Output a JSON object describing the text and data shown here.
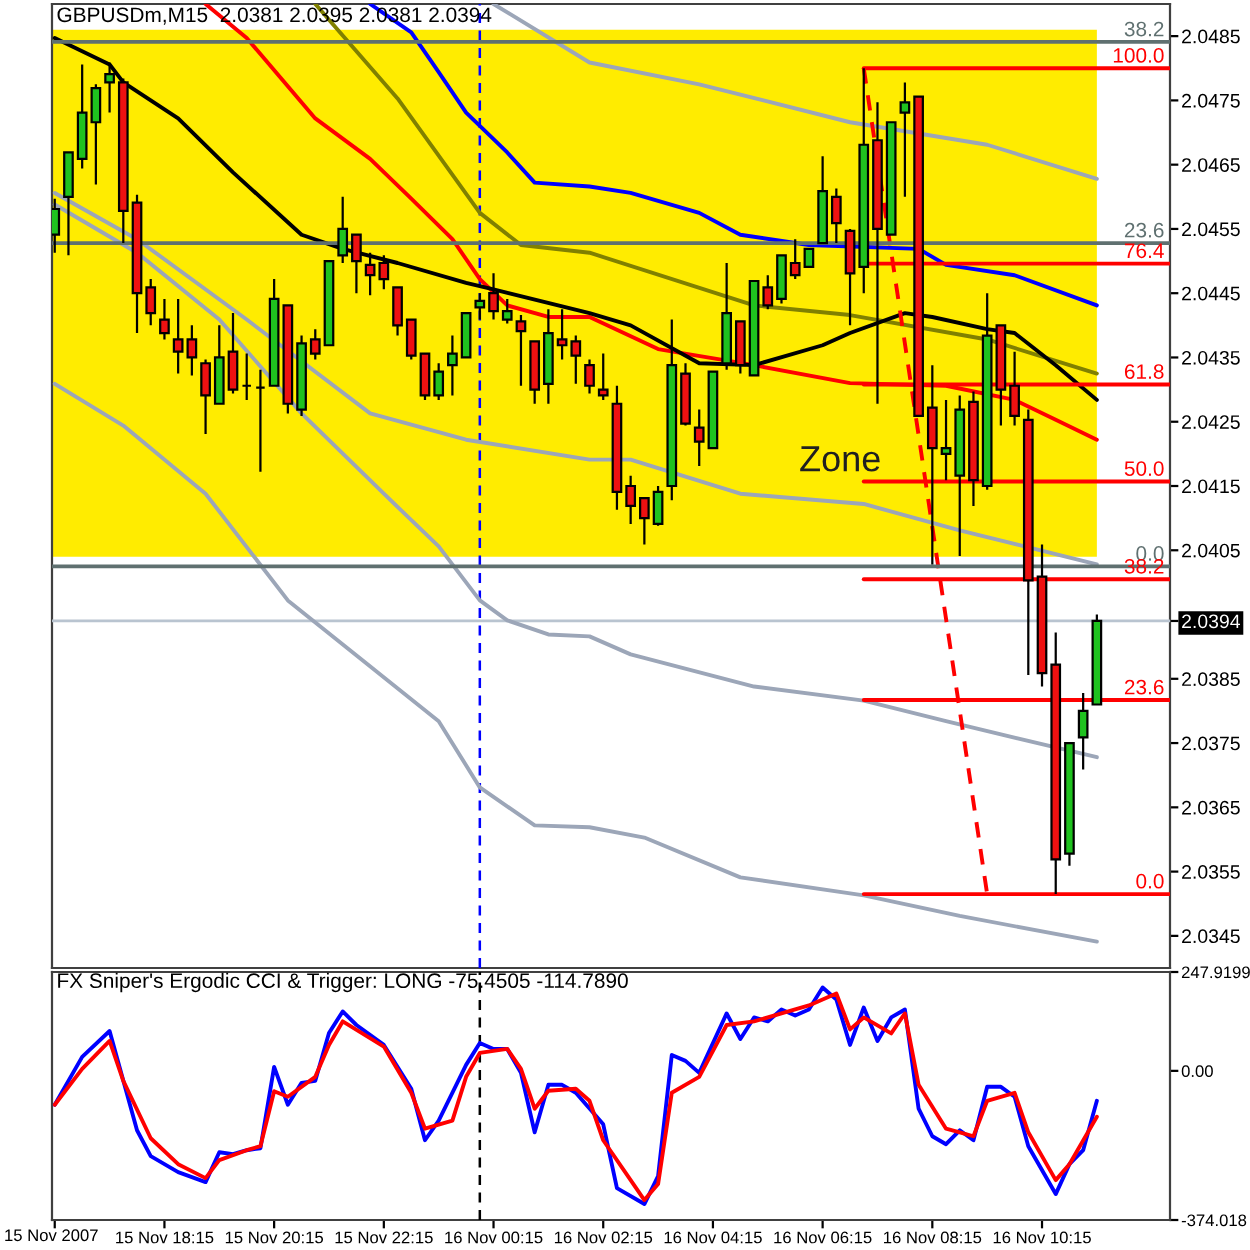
{
  "chart_data": [
    {
      "type": "candlestick",
      "title": "GBPUSDm,M15  2.0381 2.0395 2.0381 2.0394",
      "x": [
        "2007-11-15T16:15",
        "2007-11-15T16:30",
        "2007-11-15T16:45",
        "2007-11-15T17:00",
        "2007-11-15T17:15",
        "2007-11-15T17:30",
        "2007-11-15T17:45",
        "2007-11-15T18:00",
        "2007-11-15T18:15",
        "2007-11-15T18:30",
        "2007-11-15T18:45",
        "2007-11-15T19:00",
        "2007-11-15T19:15",
        "2007-11-15T19:30",
        "2007-11-15T19:45",
        "2007-11-15T20:00",
        "2007-11-15T20:15",
        "2007-11-15T20:30",
        "2007-11-15T20:45",
        "2007-11-15T21:00",
        "2007-11-15T21:15",
        "2007-11-15T21:30",
        "2007-11-15T21:45",
        "2007-11-15T22:00",
        "2007-11-15T22:15",
        "2007-11-15T22:30",
        "2007-11-15T22:45",
        "2007-11-15T23:00",
        "2007-11-15T23:15",
        "2007-11-15T23:30",
        "2007-11-15T23:45",
        "2007-11-16T00:00",
        "2007-11-16T00:15",
        "2007-11-16T00:30",
        "2007-11-16T00:45",
        "2007-11-16T01:00",
        "2007-11-16T01:15",
        "2007-11-16T01:30",
        "2007-11-16T01:45",
        "2007-11-16T02:00",
        "2007-11-16T02:15",
        "2007-11-16T02:30",
        "2007-11-16T02:45",
        "2007-11-16T03:00",
        "2007-11-16T03:15",
        "2007-11-16T03:30",
        "2007-11-16T03:45",
        "2007-11-16T04:00",
        "2007-11-16T04:15",
        "2007-11-16T04:30",
        "2007-11-16T04:45",
        "2007-11-16T05:00",
        "2007-11-16T05:15",
        "2007-11-16T05:30",
        "2007-11-16T05:45",
        "2007-11-16T06:00",
        "2007-11-16T06:15",
        "2007-11-16T06:30",
        "2007-11-16T06:45",
        "2007-11-16T07:00",
        "2007-11-16T07:15",
        "2007-11-16T07:30",
        "2007-11-16T07:45",
        "2007-11-16T08:00",
        "2007-11-16T08:15",
        "2007-11-16T08:30",
        "2007-11-16T08:45",
        "2007-11-16T09:00",
        "2007-11-16T09:15",
        "2007-11-16T09:30",
        "2007-11-16T09:45",
        "2007-11-16T10:00",
        "2007-11-16T10:15",
        "2007-11-16T10:30",
        "2007-11-16T10:45",
        "2007-11-16T11:00",
        "2007-11-16T11:15"
      ],
      "ohlc": [
        [
          2.04541,
          2.04597,
          2.04513,
          2.04581
        ],
        [
          2.046,
          2.04669,
          2.04509,
          2.04669
        ],
        [
          2.04659,
          2.04806,
          2.04644,
          2.04731
        ],
        [
          2.04716,
          2.04775,
          2.04619,
          2.04769
        ],
        [
          2.04778,
          2.04809,
          2.04731,
          2.04791
        ],
        [
          2.04778,
          2.04784,
          2.04528,
          2.04578
        ],
        [
          2.04591,
          2.04603,
          2.04388,
          2.0445
        ],
        [
          2.04459,
          2.04472,
          2.044,
          2.04419
        ],
        [
          2.04409,
          2.04441,
          2.04378,
          2.04388
        ],
        [
          2.04378,
          2.04441,
          2.04325,
          2.04359
        ],
        [
          2.04378,
          2.044,
          2.04322,
          2.0435
        ],
        [
          2.04341,
          2.04347,
          2.04231,
          2.04291
        ],
        [
          2.04278,
          2.044,
          2.04278,
          2.0435
        ],
        [
          2.04359,
          2.04419,
          2.04294,
          2.043
        ],
        [
          2.04306,
          2.04356,
          2.04284,
          2.04306
        ],
        [
          2.04303,
          2.04331,
          2.04172,
          2.04303
        ],
        [
          2.04306,
          2.04472,
          2.04306,
          2.04441
        ],
        [
          2.04431,
          2.04431,
          2.04263,
          2.04278
        ],
        [
          2.04269,
          2.04384,
          2.04259,
          2.04372
        ],
        [
          2.04378,
          2.04394,
          2.04347,
          2.04356
        ],
        [
          2.04369,
          2.045,
          2.04369,
          2.045
        ],
        [
          2.04509,
          2.046,
          2.04497,
          2.0455
        ],
        [
          2.04541,
          2.04541,
          2.0445,
          2.045
        ],
        [
          2.04494,
          2.04513,
          2.04447,
          2.04478
        ],
        [
          2.04497,
          2.04509,
          2.04456,
          2.04472
        ],
        [
          2.04459,
          2.04459,
          2.04384,
          2.044
        ],
        [
          2.04409,
          2.04409,
          2.04347,
          2.04353
        ],
        [
          2.04356,
          2.04356,
          2.04284,
          2.04291
        ],
        [
          2.04291,
          2.04341,
          2.04284,
          2.04328
        ],
        [
          2.04338,
          2.04384,
          2.04291,
          2.04356
        ],
        [
          2.0435,
          2.04419,
          2.0435,
          2.04419
        ],
        [
          2.04428,
          2.0445,
          2.04409,
          2.04438
        ],
        [
          2.0445,
          2.04481,
          2.04409,
          2.04422
        ],
        [
          2.04409,
          2.04441,
          2.04403,
          2.04422
        ],
        [
          2.04406,
          2.04416,
          2.04306,
          2.04391
        ],
        [
          2.04375,
          2.04375,
          2.04278,
          2.043
        ],
        [
          2.04309,
          2.04425,
          2.04278,
          2.04388
        ],
        [
          2.04378,
          2.04425,
          2.04347,
          2.04369
        ],
        [
          2.04375,
          2.04384,
          2.04309,
          2.04353
        ],
        [
          2.04338,
          2.04347,
          2.04294,
          2.04306
        ],
        [
          2.043,
          2.04356,
          2.04284,
          2.04291
        ],
        [
          2.04278,
          2.04306,
          2.04113,
          2.04141
        ],
        [
          2.0415,
          2.04166,
          2.04091,
          2.04119
        ],
        [
          2.04131,
          2.04131,
          2.04059,
          2.041
        ],
        [
          2.04091,
          2.0415,
          2.04088,
          2.04141
        ],
        [
          2.0415,
          2.04409,
          2.04128,
          2.04338
        ],
        [
          2.04325,
          2.04341,
          2.04244,
          2.04247
        ],
        [
          2.04241,
          2.04269,
          2.04181,
          2.04219
        ],
        [
          2.04209,
          2.04328,
          2.04209,
          2.04328
        ],
        [
          2.04341,
          2.04497,
          2.04331,
          2.04419
        ],
        [
          2.04406,
          2.04406,
          2.04325,
          2.04338
        ],
        [
          2.04322,
          2.04469,
          2.04322,
          2.04469
        ],
        [
          2.04459,
          2.04478,
          2.04425,
          2.04431
        ],
        [
          2.04441,
          2.04509,
          2.04434,
          2.04509
        ],
        [
          2.04497,
          2.04534,
          2.04472,
          2.04478
        ],
        [
          2.04491,
          2.04519,
          2.04491,
          2.04519
        ],
        [
          2.04528,
          2.04663,
          2.04528,
          2.04609
        ],
        [
          2.046,
          2.04613,
          2.04528,
          2.04559
        ],
        [
          2.04547,
          2.0455,
          2.044,
          2.04481
        ],
        [
          2.04491,
          2.048,
          2.0445,
          2.04681
        ],
        [
          2.04688,
          2.04747,
          2.04278,
          2.0455
        ],
        [
          2.04541,
          2.04716,
          2.04541,
          2.04716
        ],
        [
          2.04731,
          2.04778,
          2.046,
          2.04747
        ],
        [
          2.04756,
          2.04756,
          2.04259,
          2.04259
        ],
        [
          2.04272,
          2.04338,
          2.04028,
          2.04209
        ],
        [
          2.042,
          2.04284,
          2.04159,
          2.04209
        ],
        [
          2.04166,
          2.04291,
          2.04041,
          2.04269
        ],
        [
          2.04281,
          2.04297,
          2.04119,
          2.04159
        ],
        [
          2.0415,
          2.0445,
          2.04144,
          2.04384
        ],
        [
          2.044,
          2.044,
          2.04244,
          2.043
        ],
        [
          2.04306,
          2.04359,
          2.04244,
          2.04259
        ],
        [
          2.04253,
          2.04269,
          2.03856,
          2.04003
        ],
        [
          2.04009,
          2.04059,
          2.03838,
          2.03859
        ],
        [
          2.03872,
          2.03922,
          2.03515,
          2.03569
        ],
        [
          2.03578,
          2.0375,
          2.03559,
          2.0375
        ],
        [
          2.03759,
          2.03828,
          2.03709,
          2.038
        ],
        [
          2.0381,
          2.0395,
          2.0381,
          2.0394
        ]
      ],
      "colors": [
        "#1fc21f",
        "#1fc21f",
        "#1fc21f",
        "#1fc21f",
        "#1fc21f",
        "#ee1111",
        "#ee1111",
        "#ee1111",
        "#ee1111",
        "#ee1111",
        "#ee1111",
        "#ee1111",
        "#1fc21f",
        "#ee1111",
        "#000000",
        "#000000",
        "#1fc21f",
        "#ee1111",
        "#1fc21f",
        "#ee1111",
        "#1fc21f",
        "#1fc21f",
        "#ee1111",
        "#ee1111",
        "#ee1111",
        "#ee1111",
        "#ee1111",
        "#ee1111",
        "#1fc21f",
        "#1fc21f",
        "#1fc21f",
        "#1fc21f",
        "#ee1111",
        "#1fc21f",
        "#ee1111",
        "#ee1111",
        "#1fc21f",
        "#ee1111",
        "#ee1111",
        "#ee1111",
        "#ee1111",
        "#ee1111",
        "#ee1111",
        "#ee1111",
        "#1fc21f",
        "#1fc21f",
        "#ee1111",
        "#ee1111",
        "#1fc21f",
        "#1fc21f",
        "#ee1111",
        "#1fc21f",
        "#ee1111",
        "#1fc21f",
        "#ee1111",
        "#1fc21f",
        "#1fc21f",
        "#ee1111",
        "#ee1111",
        "#1fc21f",
        "#ee1111",
        "#1fc21f",
        "#1fc21f",
        "#ee1111",
        "#ee1111",
        "#1fc21f",
        "#1fc21f",
        "#ee1111",
        "#1fc21f",
        "#ee1111",
        "#ee1111",
        "#ee1111",
        "#ee1111",
        "#ee1111",
        "#1fc21f",
        "#1fc21f",
        "#1fc21f"
      ],
      "series": [
        {
          "type": "line",
          "color": "#9ca6b8",
          "x": [
            "2007-11-16T00:15",
            "2007-11-16T02:00",
            "2007-11-16T04:00",
            "2007-11-16T06:45",
            "2007-11-16T09:15",
            "2007-11-16T11:15"
          ],
          "values": [
            2.049,
            2.04809,
            2.04775,
            2.04716,
            2.04681,
            2.04628
          ]
        },
        {
          "type": "line",
          "color": "#9ca6b8",
          "x": [
            "2007-11-15T16:15",
            "2007-11-15T17:45",
            "2007-11-15T19:45",
            "2007-11-15T22:00",
            "2007-11-15T23:45",
            "2007-11-16T02:00",
            "2007-11-16T02:45",
            "2007-11-16T04:45",
            "2007-11-16T07:00",
            "2007-11-16T08:45",
            "2007-11-16T11:15"
          ],
          "values": [
            2.04606,
            2.04534,
            2.04409,
            2.04263,
            2.04222,
            2.04191,
            2.04191,
            2.04138,
            2.04122,
            2.04081,
            2.04028
          ]
        },
        {
          "type": "line",
          "color": "#9ca6b8",
          "x": [
            "2007-11-15T16:15",
            "2007-11-15T17:45",
            "2007-11-15T19:15",
            "2007-11-15T20:45",
            "2007-11-15T22:15",
            "2007-11-15T23:15",
            "2007-11-16T00:00",
            "2007-11-16T00:30",
            "2007-11-16T01:15",
            "2007-11-16T02:00",
            "2007-11-16T02:45",
            "2007-11-16T05:00",
            "2007-11-16T07:00",
            "2007-11-16T08:30",
            "2007-11-16T11:15"
          ],
          "values": [
            2.04588,
            2.04513,
            2.04409,
            2.04263,
            2.04138,
            2.04056,
            2.03972,
            2.03941,
            2.03919,
            2.03916,
            2.03888,
            2.03838,
            2.03816,
            2.03784,
            2.03728
          ]
        },
        {
          "type": "line",
          "color": "#9ca6b8",
          "x": [
            "2007-11-15T16:15",
            "2007-11-15T17:30",
            "2007-11-15T19:00",
            "2007-11-15T20:30",
            "2007-11-15T23:15",
            "2007-11-16T00:00",
            "2007-11-16T01:00",
            "2007-11-16T02:00",
            "2007-11-16T03:00",
            "2007-11-16T04:45",
            "2007-11-16T07:00",
            "2007-11-16T08:45",
            "2007-11-16T11:15"
          ],
          "values": [
            2.04309,
            2.04244,
            2.04138,
            2.03972,
            2.03784,
            2.03681,
            2.03622,
            2.03619,
            2.03603,
            2.03541,
            2.03513,
            2.03481,
            2.03441
          ]
        },
        {
          "type": "line",
          "color": "#808000",
          "x": [
            "2007-11-15T21:00",
            "2007-11-15T22:30",
            "2007-11-16T00:00",
            "2007-11-16T00:45",
            "2007-11-16T02:00",
            "2007-11-16T05:00",
            "2007-11-16T06:45",
            "2007-11-16T09:15",
            "2007-11-16T11:15"
          ],
          "values": [
            2.049,
            2.04753,
            2.04575,
            2.04525,
            2.04513,
            2.04431,
            2.04416,
            2.04378,
            2.04325
          ]
        },
        {
          "type": "line",
          "color": "#0000ff",
          "x": [
            "2007-11-15T22:00",
            "2007-11-15T22:45",
            "2007-11-15T23:15",
            "2007-11-15T23:45",
            "2007-11-16T00:30",
            "2007-11-16T01:00",
            "2007-11-16T02:00",
            "2007-11-16T02:45",
            "2007-11-16T04:00",
            "2007-11-16T04:45",
            "2007-11-16T06:00",
            "2007-11-16T08:00",
            "2007-11-16T08:30",
            "2007-11-16T09:45",
            "2007-11-16T11:15"
          ],
          "values": [
            2.049,
            2.04856,
            2.04794,
            2.04731,
            2.04669,
            2.04622,
            2.04616,
            2.04606,
            2.04575,
            2.04541,
            2.04525,
            2.04519,
            2.04494,
            2.04478,
            2.04431
          ]
        },
        {
          "type": "line",
          "color": "#ff0000",
          "x": [
            "2007-11-15T19:00",
            "2007-11-15T19:45",
            "2007-11-15T21:00",
            "2007-11-15T22:00",
            "2007-11-15T22:45",
            "2007-11-15T23:30",
            "2007-11-16T00:00",
            "2007-11-16T00:30",
            "2007-11-16T01:15",
            "2007-11-16T02:00",
            "2007-11-16T03:15",
            "2007-11-16T05:00",
            "2007-11-16T06:45",
            "2007-11-16T08:30",
            "2007-11-16T09:45",
            "2007-11-16T10:30",
            "2007-11-16T11:15"
          ],
          "values": [
            2.049,
            2.04847,
            2.04722,
            2.04659,
            2.04597,
            2.04534,
            2.04472,
            2.04431,
            2.04413,
            2.04413,
            2.04363,
            2.04338,
            2.0431,
            2.04306,
            2.04284,
            2.04253,
            2.04222
          ]
        },
        {
          "type": "line",
          "color": "#000000",
          "x": [
            "2007-11-15T16:15",
            "2007-11-15T17:15",
            "2007-11-15T17:30",
            "2007-11-15T18:30",
            "2007-11-15T19:30",
            "2007-11-15T20:45",
            "2007-11-15T21:30",
            "2007-11-15T22:30",
            "2007-11-15T23:45",
            "2007-11-16T00:15",
            "2007-11-16T02:00",
            "2007-11-16T02:45",
            "2007-11-16T04:00",
            "2007-11-16T05:00",
            "2007-11-16T06:15",
            "2007-11-16T06:45",
            "2007-11-16T07:45",
            "2007-11-16T08:15",
            "2007-11-16T09:15",
            "2007-11-16T09:45",
            "2007-11-16T10:30",
            "2007-11-16T11:15"
          ],
          "values": [
            2.04847,
            2.04806,
            2.04778,
            2.04722,
            2.04638,
            2.04541,
            2.04519,
            2.04497,
            2.04466,
            2.04456,
            2.04419,
            2.044,
            2.04341,
            2.04338,
            2.04369,
            2.04388,
            2.04419,
            2.04413,
            2.04394,
            2.04388,
            2.04338,
            2.04284
          ]
        },
        {
          "type": "line",
          "color": "#ff0000",
          "line_style": "dashed",
          "x": [
            "2007-11-16T07:00",
            "2007-11-16T09:15"
          ],
          "values": [
            2.048,
            2.03515
          ]
        },
        {
          "type": "line",
          "color": "#5f7070",
          "name": "38.2",
          "x": [
            "2007-11-15T16:12",
            "2007-11-16T12:35"
          ],
          "values": [
            2.04841,
            2.04841
          ]
        },
        {
          "type": "line",
          "color": "#5f7070",
          "name": "23.6",
          "x": [
            "2007-11-15T16:12",
            "2007-11-16T12:35"
          ],
          "values": [
            2.04528,
            2.04528
          ]
        },
        {
          "type": "line",
          "color": "#5f7070",
          "name": "0.0",
          "x": [
            "2007-11-15T16:12",
            "2007-11-16T12:35"
          ],
          "values": [
            2.04025,
            2.04025
          ]
        },
        {
          "type": "line",
          "color": "#ff0000",
          "name": "100.0",
          "x": [
            "2007-11-16T07:00",
            "2007-11-16T12:35"
          ],
          "values": [
            2.048,
            2.048
          ]
        },
        {
          "type": "line",
          "color": "#ff0000",
          "name": "76.4",
          "x": [
            "2007-11-16T07:00",
            "2007-11-16T12:35"
          ],
          "values": [
            2.04496,
            2.04496
          ]
        },
        {
          "type": "line",
          "color": "#ff0000",
          "name": "61.8",
          "x": [
            "2007-11-16T07:00",
            "2007-11-16T12:35"
          ],
          "values": [
            2.04308,
            2.04308
          ]
        },
        {
          "type": "line",
          "color": "#ff0000",
          "name": "50.0",
          "x": [
            "2007-11-16T07:00",
            "2007-11-16T12:35"
          ],
          "values": [
            2.04157,
            2.04157
          ]
        },
        {
          "type": "line",
          "color": "#ff0000",
          "name": "38.2",
          "x": [
            "2007-11-16T07:00",
            "2007-11-16T12:35"
          ],
          "values": [
            2.04005,
            2.04005
          ]
        },
        {
          "type": "line",
          "color": "#ff0000",
          "name": "23.6",
          "x": [
            "2007-11-16T07:00",
            "2007-11-16T12:35"
          ],
          "values": [
            2.03817,
            2.03817
          ]
        },
        {
          "type": "line",
          "color": "#ff0000",
          "name": "0.0",
          "x": [
            "2007-11-16T07:00",
            "2007-11-16T12:35"
          ],
          "values": [
            2.03515,
            2.03515
          ]
        }
      ],
      "xlim": [
        "2007-11-15T16:12",
        "2007-11-16T12:35"
      ],
      "ylim": [
        2.034,
        2.049
      ],
      "yticks": [
        2.0485,
        2.0475,
        2.0465,
        2.0455,
        2.0445,
        2.0435,
        2.0425,
        2.0415,
        2.0405,
        2.0394,
        2.0385,
        2.0375,
        2.0365,
        2.0355,
        2.0345
      ],
      "tick_labels": "y",
      "bands": [
        {
          "axis": "y",
          "from": 2.0404,
          "to": 2.0486,
          "label": "Zone",
          "color": "#ffec00"
        }
      ],
      "ref_lines": [
        {
          "axis": "y",
          "value": 2.0394,
          "color": "#b9c4d0"
        },
        {
          "axis": "x",
          "value": "2007-11-16T00:00",
          "color": "#0000ff",
          "line_style": "dashed"
        }
      ]
    },
    {
      "type": "line",
      "title": "FX Sniper's Ergodic CCI & Trigger: LONG -75.4505 -114.7890",
      "series": [
        {
          "color": "#0000ff",
          "x": [
            "2007-11-15T16:15",
            "2007-11-15T16:45",
            "2007-11-15T17:15",
            "2007-11-15T17:45",
            "2007-11-15T18:00",
            "2007-11-15T18:30",
            "2007-11-15T19:00",
            "2007-11-15T19:15",
            "2007-11-15T19:30",
            "2007-11-15T19:45",
            "2007-11-15T20:00",
            "2007-11-15T20:15",
            "2007-11-15T20:30",
            "2007-11-15T20:45",
            "2007-11-15T21:00",
            "2007-11-15T21:15",
            "2007-11-15T21:30",
            "2007-11-15T21:45",
            "2007-11-15T22:15",
            "2007-11-15T22:45",
            "2007-11-15T23:00",
            "2007-11-15T23:15",
            "2007-11-15T23:45",
            "2007-11-16T00:00",
            "2007-11-16T00:15",
            "2007-11-16T00:30",
            "2007-11-16T00:45",
            "2007-11-16T01:00",
            "2007-11-16T01:15",
            "2007-11-16T01:30",
            "2007-11-16T01:45",
            "2007-11-16T02:15",
            "2007-11-16T02:30",
            "2007-11-16T03:00",
            "2007-11-16T03:15",
            "2007-11-16T03:30",
            "2007-11-16T03:45",
            "2007-11-16T04:00",
            "2007-11-16T04:30",
            "2007-11-16T04:45",
            "2007-11-16T05:00",
            "2007-11-16T05:15",
            "2007-11-16T05:30",
            "2007-11-16T05:45",
            "2007-11-16T06:00",
            "2007-11-16T06:15",
            "2007-11-16T06:30",
            "2007-11-16T06:45",
            "2007-11-16T07:00",
            "2007-11-16T07:15",
            "2007-11-16T07:30",
            "2007-11-16T07:45",
            "2007-11-16T08:00",
            "2007-11-16T08:15",
            "2007-11-16T08:30",
            "2007-11-16T08:45",
            "2007-11-16T09:00",
            "2007-11-16T09:15",
            "2007-11-16T09:30",
            "2007-11-16T09:45",
            "2007-11-16T10:00",
            "2007-11-16T10:30",
            "2007-11-16T10:45",
            "2007-11-16T11:00",
            "2007-11-16T11:15"
          ],
          "values": [
            -85,
            35,
            100,
            -149,
            -214,
            -254,
            -279,
            -204,
            -209,
            -199,
            -194,
            10,
            -85,
            -30,
            -25,
            95,
            149,
            115,
            65,
            -45,
            -174,
            -125,
            15,
            70,
            55,
            55,
            -5,
            -154,
            -35,
            -35,
            -55,
            -134,
            -294,
            -334,
            -264,
            40,
            25,
            -5,
            144,
            80,
            134,
            124,
            154,
            139,
            154,
            209,
            179,
            65,
            159,
            75,
            134,
            154,
            -95,
            -164,
            -184,
            -149,
            -174,
            -40,
            -40,
            -65,
            -189,
            -309,
            -234,
            -199,
            -75
          ]
        },
        {
          "color": "#ff0000",
          "x": [
            "2007-11-15T16:15",
            "2007-11-15T16:45",
            "2007-11-15T17:15",
            "2007-11-15T17:30",
            "2007-11-15T18:00",
            "2007-11-15T18:30",
            "2007-11-15T19:00",
            "2007-11-15T19:15",
            "2007-11-15T19:45",
            "2007-11-15T20:00",
            "2007-11-15T20:15",
            "2007-11-15T20:30",
            "2007-11-15T21:00",
            "2007-11-15T21:15",
            "2007-11-15T21:30",
            "2007-11-15T22:15",
            "2007-11-15T22:45",
            "2007-11-15T23:00",
            "2007-11-15T23:30",
            "2007-11-15T23:45",
            "2007-11-16T00:00",
            "2007-11-16T00:30",
            "2007-11-16T00:45",
            "2007-11-16T01:00",
            "2007-11-16T01:15",
            "2007-11-16T01:45",
            "2007-11-16T02:00",
            "2007-11-16T02:15",
            "2007-11-16T02:45",
            "2007-11-16T03:00",
            "2007-11-16T03:15",
            "2007-11-16T03:30",
            "2007-11-16T04:00",
            "2007-11-16T04:30",
            "2007-11-16T05:00",
            "2007-11-16T05:30",
            "2007-11-16T06:00",
            "2007-11-16T06:30",
            "2007-11-16T06:45",
            "2007-11-16T07:00",
            "2007-11-16T07:30",
            "2007-11-16T07:45",
            "2007-11-16T08:00",
            "2007-11-16T08:30",
            "2007-11-16T08:45",
            "2007-11-16T09:00",
            "2007-11-16T09:15",
            "2007-11-16T09:45",
            "2007-11-16T10:00",
            "2007-11-16T10:30",
            "2007-11-16T10:45",
            "2007-11-16T11:15"
          ],
          "values": [
            -85,
            5,
            75,
            -25,
            -169,
            -234,
            -269,
            -224,
            -199,
            -189,
            -51,
            -65,
            -15,
            65,
            124,
            61,
            -55,
            -145,
            -125,
            -15,
            45,
            55,
            5,
            -95,
            -50,
            -45,
            -75,
            -174,
            -274,
            -324,
            -284,
            -55,
            -15,
            115,
            124,
            144,
            164,
            194,
            104,
            134,
            94,
            144,
            -35,
            -145,
            -154,
            -164,
            -75,
            -55,
            -154,
            -274,
            -234,
            -115
          ]
        }
      ],
      "xlim": [
        "2007-11-15T16:12",
        "2007-11-16T12:35"
      ],
      "xticks": [
        {
          "value": "2007-11-15T16:15",
          "label": null
        },
        {
          "value": "2007-11-15T18:15",
          "label": "15 Nov 18:15"
        },
        {
          "value": "2007-11-15T20:15",
          "label": "15 Nov 20:15"
        },
        {
          "value": "2007-11-15T22:15",
          "label": "15 Nov 22:15"
        },
        {
          "value": "2007-11-16T00:15",
          "label": "16 Nov 00:15"
        },
        {
          "value": "2007-11-16T02:15",
          "label": "16 Nov 02:15"
        },
        {
          "value": "2007-11-16T04:15",
          "label": "16 Nov 04:15"
        },
        {
          "value": "2007-11-16T06:15",
          "label": "16 Nov 06:15"
        },
        {
          "value": "2007-11-16T08:15",
          "label": "16 Nov 08:15"
        },
        {
          "value": "2007-11-16T10:15",
          "label": "16 Nov 10:15"
        }
      ],
      "ylim": [
        -374.018,
        247.9199
      ],
      "yticks": [
        247.9199,
        {
          "value": 0,
          "label": "0.00"
        },
        -374.018
      ],
      "ref_lines": [
        {
          "axis": "x",
          "value": "2007-11-16T00:00",
          "color": "#000000",
          "line_style": "dashed"
        }
      ],
      "annotations": [
        "15 Nov 2007"
      ]
    }
  ]
}
